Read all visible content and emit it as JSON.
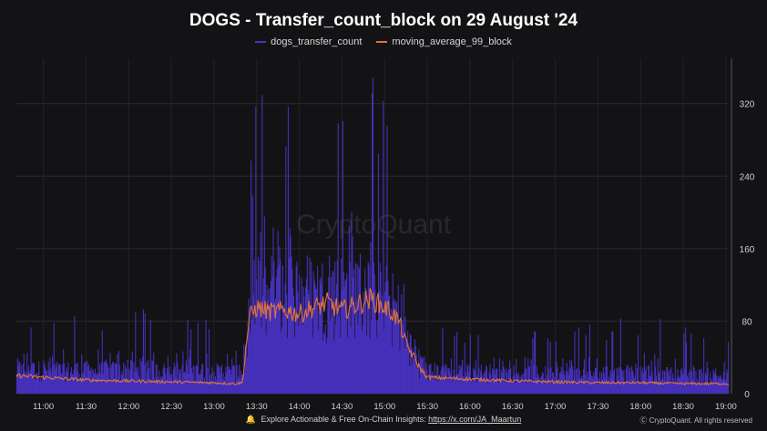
{
  "chart_data": {
    "type": "line",
    "title": "DOGS - Transfer_count_block on 29 August '24",
    "xlabel": "",
    "ylabel": "",
    "x_ticks": [
      "11:00",
      "11:30",
      "12:00",
      "12:30",
      "13:00",
      "13:30",
      "14:00",
      "14:30",
      "15:00",
      "15:30",
      "16:00",
      "16:30",
      "17:00",
      "17:30",
      "18:00",
      "18:30",
      "19:00"
    ],
    "y_ticks": [
      "0",
      "80",
      "160",
      "240",
      "320"
    ],
    "ylim": [
      0,
      370
    ],
    "xlim": [
      "10:41",
      "19:02"
    ],
    "grid": true,
    "legend_position": "top",
    "series": [
      {
        "name": "dogs_transfer_count",
        "color": "#4a33c9",
        "profile_time": [
          "10:41",
          "11:00",
          "12:00",
          "13:00",
          "13:20",
          "13:30",
          "13:40",
          "14:00",
          "14:20",
          "14:40",
          "15:00",
          "15:10",
          "15:20",
          "15:30",
          "16:00",
          "17:00",
          "18:00",
          "19:00",
          "19:02"
        ],
        "profile_typical": [
          28,
          26,
          26,
          24,
          24,
          110,
          120,
          115,
          110,
          118,
          105,
          90,
          40,
          25,
          24,
          22,
          22,
          20,
          20
        ],
        "profile_peak": [
          80,
          90,
          100,
          95,
          90,
          370,
          360,
          330,
          350,
          370,
          340,
          280,
          150,
          75,
          70,
          75,
          90,
          65,
          60
        ]
      },
      {
        "name": "moving_average_99_block",
        "color": "#e0743a",
        "points_time": [
          "10:41",
          "11:00",
          "11:30",
          "12:00",
          "12:30",
          "13:00",
          "13:15",
          "13:20",
          "13:22",
          "13:25",
          "13:30",
          "13:40",
          "13:50",
          "14:00",
          "14:10",
          "14:20",
          "14:30",
          "14:40",
          "14:50",
          "15:00",
          "15:05",
          "15:10",
          "15:15",
          "15:20",
          "15:25",
          "15:30",
          "16:00",
          "16:30",
          "17:00",
          "17:30",
          "18:00",
          "18:30",
          "19:00",
          "19:02"
        ],
        "points_value": [
          20,
          18,
          15,
          14,
          13,
          12,
          11,
          12,
          45,
          85,
          95,
          90,
          92,
          88,
          95,
          100,
          92,
          98,
          105,
          95,
          90,
          80,
          55,
          42,
          28,
          18,
          16,
          14,
          13,
          12,
          12,
          11,
          11,
          10
        ]
      }
    ],
    "watermark": "CryptoQuant"
  },
  "footer": {
    "text": "Explore Actionable & Free On-Chain Insights:",
    "link": "https://x.com/JA_Maartun",
    "copyright": "CryptoQuant. All rights reserved"
  },
  "colors": {
    "background": "#131316",
    "grid": "#2a2a30",
    "axis_text": "#cfcfcf"
  }
}
